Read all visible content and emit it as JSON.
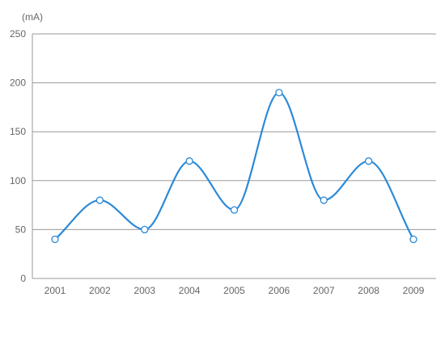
{
  "chart_data": {
    "type": "line",
    "unit_label": "(mA)",
    "x": [
      "2001",
      "2002",
      "2003",
      "2004",
      "2005",
      "2006",
      "2007",
      "2008",
      "2009"
    ],
    "series": [
      {
        "values": [
          40,
          80,
          50,
          120,
          70,
          190,
          80,
          120,
          40
        ],
        "color": "#2b8ad8"
      }
    ],
    "ylim": [
      0,
      250
    ],
    "yticks": [
      0,
      50,
      100,
      150,
      200,
      250
    ],
    "grid": true,
    "smooth": true,
    "markers": "hollow-circle"
  }
}
